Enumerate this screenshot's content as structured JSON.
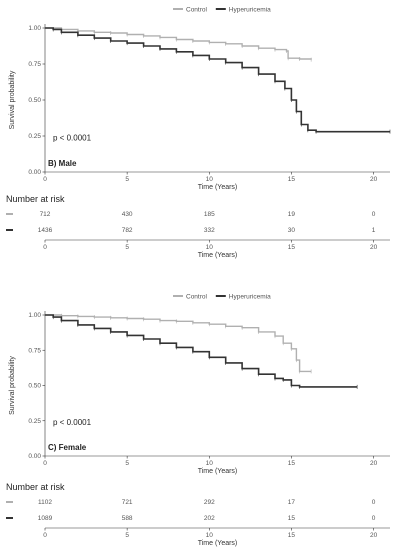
{
  "chart_data": [
    {
      "type": "line",
      "panel_label": "B) Male",
      "ylabel": "Survival probability",
      "xlabel": "Time (Years)",
      "xlim": [
        0,
        21
      ],
      "ylim": [
        0,
        1
      ],
      "x_ticks": [
        0,
        5,
        10,
        15,
        20
      ],
      "y_ticks": [
        "0.00",
        "0.25",
        "0.50",
        "0.75",
        "1.00"
      ],
      "grid": false,
      "legend_position": "top",
      "pvalue": "p < 0.0001",
      "series": [
        {
          "name": "Control",
          "color": "#b0b0b0",
          "points": [
            [
              0,
              1.0
            ],
            [
              1,
              0.99
            ],
            [
              2,
              0.98
            ],
            [
              3,
              0.97
            ],
            [
              4,
              0.965
            ],
            [
              5,
              0.955
            ],
            [
              6,
              0.945
            ],
            [
              7,
              0.935
            ],
            [
              8,
              0.92
            ],
            [
              9,
              0.91
            ],
            [
              10,
              0.9
            ],
            [
              11,
              0.89
            ],
            [
              12,
              0.875
            ],
            [
              13,
              0.86
            ],
            [
              14,
              0.85
            ],
            [
              14.7,
              0.84
            ],
            [
              14.8,
              0.79
            ],
            [
              15.5,
              0.785
            ],
            [
              16.2,
              0.78
            ]
          ]
        },
        {
          "name": "Hyperuricemia",
          "color": "#333333",
          "points": [
            [
              0,
              1.0
            ],
            [
              0.5,
              0.99
            ],
            [
              1,
              0.97
            ],
            [
              2,
              0.95
            ],
            [
              3,
              0.93
            ],
            [
              4,
              0.91
            ],
            [
              5,
              0.895
            ],
            [
              6,
              0.875
            ],
            [
              7,
              0.855
            ],
            [
              8,
              0.835
            ],
            [
              9,
              0.81
            ],
            [
              10,
              0.785
            ],
            [
              11,
              0.76
            ],
            [
              12,
              0.725
            ],
            [
              13,
              0.68
            ],
            [
              14,
              0.63
            ],
            [
              14.6,
              0.58
            ],
            [
              15,
              0.5
            ],
            [
              15.3,
              0.42
            ],
            [
              15.6,
              0.33
            ],
            [
              16,
              0.29
            ],
            [
              16.5,
              0.28
            ],
            [
              21,
              0.28
            ]
          ]
        }
      ],
      "risk_table": {
        "title": "Number at risk",
        "xlabel": "Time (Years)",
        "times": [
          0,
          5,
          10,
          15,
          20
        ],
        "rows": [
          {
            "group": "Control",
            "values": [
              712,
              430,
              185,
              19,
              0
            ]
          },
          {
            "group": "Hyperuricemia",
            "values": [
              1436,
              782,
              332,
              30,
              1
            ]
          }
        ]
      }
    },
    {
      "type": "line",
      "panel_label": "C) Female",
      "ylabel": "Survival probability",
      "xlabel": "Time (Years)",
      "xlim": [
        0,
        21
      ],
      "ylim": [
        0,
        1
      ],
      "x_ticks": [
        0,
        5,
        10,
        15,
        20
      ],
      "y_ticks": [
        "0.00",
        "0.25",
        "0.50",
        "0.75",
        "1.00"
      ],
      "grid": false,
      "legend_position": "top",
      "pvalue": "p < 0.0001",
      "series": [
        {
          "name": "Control",
          "color": "#b0b0b0",
          "points": [
            [
              0,
              1.0
            ],
            [
              1,
              0.995
            ],
            [
              2,
              0.99
            ],
            [
              3,
              0.985
            ],
            [
              4,
              0.98
            ],
            [
              5,
              0.975
            ],
            [
              6,
              0.97
            ],
            [
              7,
              0.96
            ],
            [
              8,
              0.955
            ],
            [
              9,
              0.945
            ],
            [
              10,
              0.935
            ],
            [
              11,
              0.92
            ],
            [
              12,
              0.91
            ],
            [
              13,
              0.88
            ],
            [
              14,
              0.85
            ],
            [
              14.5,
              0.8
            ],
            [
              15,
              0.76
            ],
            [
              15.3,
              0.68
            ],
            [
              15.5,
              0.6
            ],
            [
              16.2,
              0.6
            ]
          ]
        },
        {
          "name": "Hyperuricemia",
          "color": "#333333",
          "points": [
            [
              0,
              1.0
            ],
            [
              0.5,
              0.985
            ],
            [
              1,
              0.96
            ],
            [
              2,
              0.93
            ],
            [
              3,
              0.905
            ],
            [
              4,
              0.88
            ],
            [
              5,
              0.855
            ],
            [
              6,
              0.83
            ],
            [
              7,
              0.8
            ],
            [
              8,
              0.77
            ],
            [
              9,
              0.74
            ],
            [
              10,
              0.7
            ],
            [
              11,
              0.66
            ],
            [
              12,
              0.62
            ],
            [
              13,
              0.58
            ],
            [
              14,
              0.55
            ],
            [
              14.5,
              0.54
            ],
            [
              15,
              0.5
            ],
            [
              15.5,
              0.49
            ],
            [
              19,
              0.49
            ]
          ]
        }
      ],
      "risk_table": {
        "title": "Number at risk",
        "xlabel": "Time (Years)",
        "times": [
          0,
          5,
          10,
          15,
          20
        ],
        "rows": [
          {
            "group": "Control",
            "values": [
              1102,
              721,
              292,
              17,
              0
            ]
          },
          {
            "group": "Hyperuricemia",
            "values": [
              1089,
              588,
              202,
              15,
              0
            ]
          }
        ]
      }
    }
  ]
}
